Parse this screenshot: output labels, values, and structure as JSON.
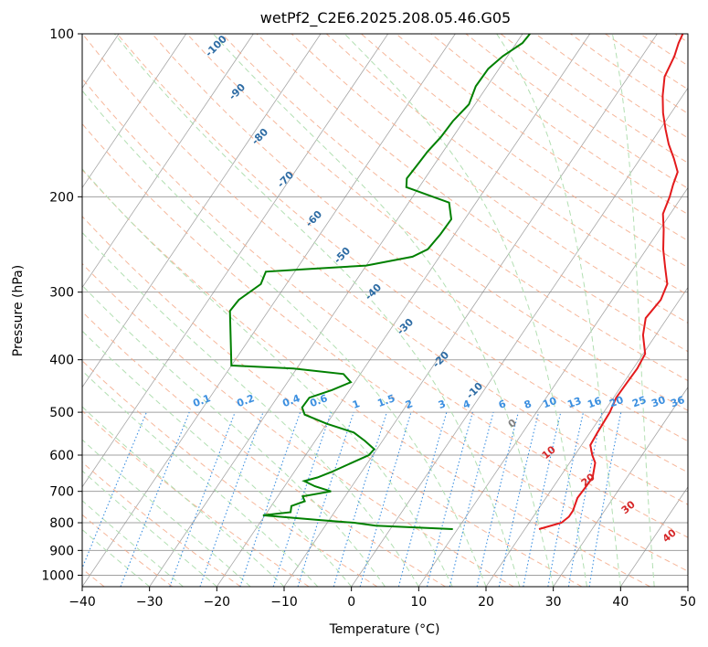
{
  "chart_data": {
    "type": "line",
    "title": "wetPf2_C2E6.2025.208.05.46.G05",
    "xlabel": "Temperature (°C)",
    "ylabel": "Pressure (hPa)",
    "xlim": [
      -40,
      50
    ],
    "ylim": [
      1050,
      100
    ],
    "y_scale": "log",
    "skew": "skew-T",
    "x_ticks": [
      -40,
      -30,
      -20,
      -10,
      0,
      10,
      20,
      30,
      40,
      50
    ],
    "y_ticks": [
      1000,
      900,
      800,
      700,
      600,
      500,
      400,
      300,
      200,
      100
    ],
    "grid": true,
    "series": [
      {
        "color": "#e31a1c",
        "points": [
          {
            "p": 822,
            "t": 22.1
          },
          {
            "p": 800,
            "t": 24.8
          },
          {
            "p": 780,
            "t": 25.3
          },
          {
            "p": 760,
            "t": 25.3
          },
          {
            "p": 720,
            "t": 24.7
          },
          {
            "p": 690,
            "t": 24.8
          },
          {
            "p": 660,
            "t": 24.9
          },
          {
            "p": 620,
            "t": 23.8
          },
          {
            "p": 600,
            "t": 22.6
          },
          {
            "p": 575,
            "t": 21.3
          },
          {
            "p": 545,
            "t": 21.1
          },
          {
            "p": 500,
            "t": 20.9
          },
          {
            "p": 470,
            "t": 20.4
          },
          {
            "p": 440,
            "t": 20.5
          },
          {
            "p": 415,
            "t": 20.6
          },
          {
            "p": 390,
            "t": 20.3
          },
          {
            "p": 360,
            "t": 18.1
          },
          {
            "p": 335,
            "t": 16.8
          },
          {
            "p": 310,
            "t": 17.2
          },
          {
            "p": 290,
            "t": 16.6
          },
          {
            "p": 270,
            "t": 14.6
          },
          {
            "p": 250,
            "t": 12.5
          },
          {
            "p": 230,
            "t": 10.6
          },
          {
            "p": 215,
            "t": 8.9
          },
          {
            "p": 200,
            "t": 8.2
          },
          {
            "p": 190,
            "t": 7.5
          },
          {
            "p": 180,
            "t": 6.9
          },
          {
            "p": 170,
            "t": 5.0
          },
          {
            "p": 160,
            "t": 2.8
          },
          {
            "p": 150,
            "t": 0.8
          },
          {
            "p": 140,
            "t": -1.2
          },
          {
            "p": 130,
            "t": -3.0
          },
          {
            "p": 120,
            "t": -4.6
          },
          {
            "p": 110,
            "t": -5.2
          },
          {
            "p": 104,
            "t": -5.9
          },
          {
            "p": 100,
            "t": -6.2
          }
        ]
      },
      {
        "color": "#008000",
        "points": [
          {
            "p": 822,
            "t": 9.3
          },
          {
            "p": 810,
            "t": -2.5
          },
          {
            "p": 800,
            "t": -6.0
          },
          {
            "p": 790,
            "t": -12.0
          },
          {
            "p": 775,
            "t": -20.3
          },
          {
            "p": 765,
            "t": -16.5
          },
          {
            "p": 745,
            "t": -17.0
          },
          {
            "p": 730,
            "t": -15.5
          },
          {
            "p": 715,
            "t": -16.3
          },
          {
            "p": 700,
            "t": -12.6
          },
          {
            "p": 685,
            "t": -15.5
          },
          {
            "p": 670,
            "t": -17.6
          },
          {
            "p": 660,
            "t": -16.0
          },
          {
            "p": 645,
            "t": -14.5
          },
          {
            "p": 625,
            "t": -12.8
          },
          {
            "p": 600,
            "t": -10.6
          },
          {
            "p": 585,
            "t": -10.4
          },
          {
            "p": 565,
            "t": -12.6
          },
          {
            "p": 545,
            "t": -15.1
          },
          {
            "p": 525,
            "t": -20.0
          },
          {
            "p": 505,
            "t": -24.2
          },
          {
            "p": 490,
            "t": -25.3
          },
          {
            "p": 470,
            "t": -25.2
          },
          {
            "p": 455,
            "t": -22.6
          },
          {
            "p": 440,
            "t": -20.6
          },
          {
            "p": 425,
            "t": -22.5
          },
          {
            "p": 415,
            "t": -30.5
          },
          {
            "p": 410,
            "t": -40.0
          },
          {
            "p": 325,
            "t": -45.7
          },
          {
            "p": 310,
            "t": -45.5
          },
          {
            "p": 290,
            "t": -43.8
          },
          {
            "p": 275,
            "t": -44.3
          },
          {
            "p": 272,
            "t": -38.5
          },
          {
            "p": 268,
            "t": -30.0
          },
          {
            "p": 258,
            "t": -24.0
          },
          {
            "p": 250,
            "t": -22.5
          },
          {
            "p": 235,
            "t": -22.1
          },
          {
            "p": 220,
            "t": -22.0
          },
          {
            "p": 205,
            "t": -24.0
          },
          {
            "p": 200,
            "t": -27.0
          },
          {
            "p": 192,
            "t": -31.9
          },
          {
            "p": 185,
            "t": -32.7
          },
          {
            "p": 175,
            "t": -32.5
          },
          {
            "p": 165,
            "t": -32.3
          },
          {
            "p": 155,
            "t": -31.8
          },
          {
            "p": 145,
            "t": -31.6
          },
          {
            "p": 135,
            "t": -30.9
          },
          {
            "p": 125,
            "t": -31.7
          },
          {
            "p": 116,
            "t": -31.6
          },
          {
            "p": 110,
            "t": -30.7
          },
          {
            "p": 104,
            "t": -29.1
          },
          {
            "p": 100,
            "t": -28.9
          }
        ]
      }
    ],
    "dry_adiabat_labels": [
      "-100",
      "-90",
      "-80",
      "-70",
      "-60",
      "-50",
      "-40",
      "-30",
      "-20",
      "-10"
    ],
    "mixing_ratio_labels": [
      "0.1",
      "0.2",
      "0.4",
      "0.6",
      "1",
      "1.5",
      "2",
      "3",
      "4",
      "6",
      "8",
      "10",
      "13",
      "16",
      "20",
      "25",
      "30",
      "36"
    ],
    "moist_adiabat_labels": [
      "0",
      "10",
      "20",
      "30",
      "40"
    ],
    "colors": {
      "temperature": "#e31a1c",
      "dewpoint": "#008000",
      "isotherm": "#808080",
      "isobar": "#a0a0a0",
      "dry_adiabat": "#f4a582",
      "moist_adiabat": "#b2dfb2",
      "mixing_ratio": "#3b8fe0",
      "dry_label": "#2e6ca4",
      "mixing_label": "#3b8fe0",
      "moist_label": "#d62728",
      "zero_label": "#808080"
    }
  }
}
